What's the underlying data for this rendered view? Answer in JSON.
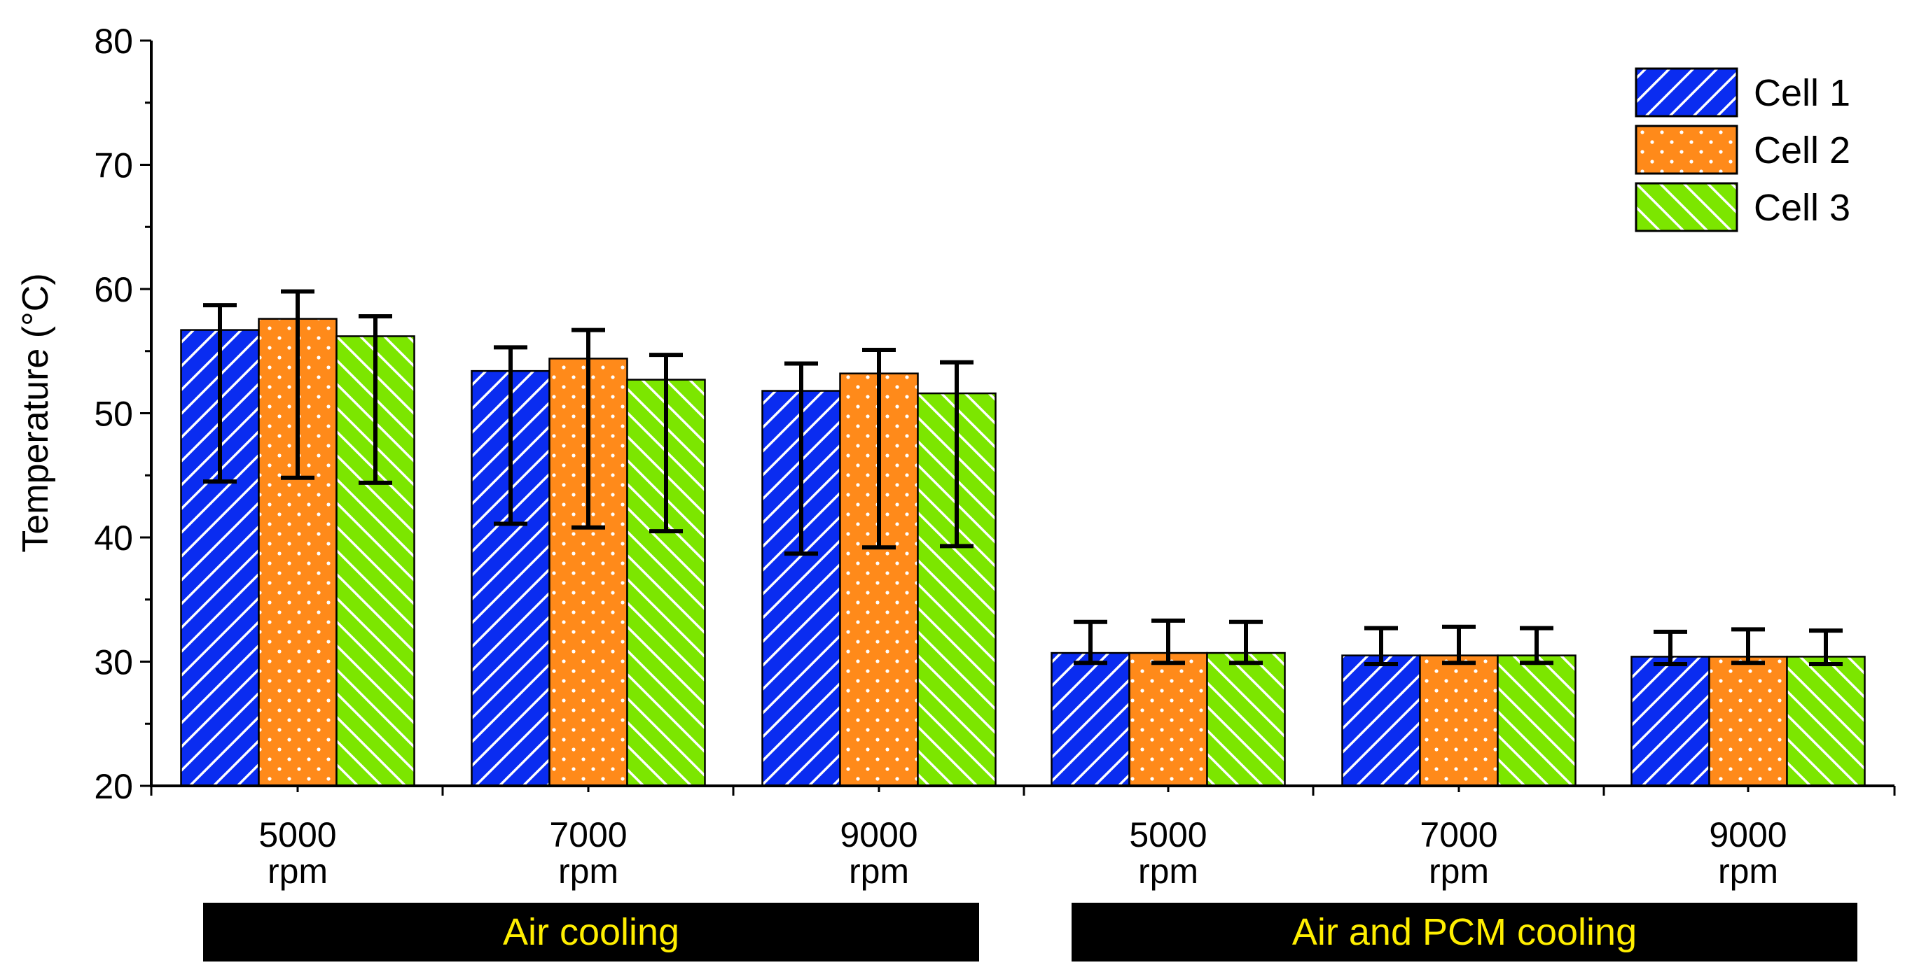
{
  "chart_data": {
    "type": "bar",
    "title": "",
    "xlabel": "",
    "ylabel": "Temperature (°C)",
    "ylim": [
      20,
      80
    ],
    "yticks": [
      20,
      30,
      40,
      50,
      60,
      70,
      80
    ],
    "grid": false,
    "legend_position": "top-right",
    "categories": [
      {
        "value": "5000",
        "unit": "rpm"
      },
      {
        "value": "7000",
        "unit": "rpm"
      },
      {
        "value": "9000",
        "unit": "rpm"
      },
      {
        "value": "5000",
        "unit": "rpm"
      },
      {
        "value": "7000",
        "unit": "rpm"
      },
      {
        "value": "9000",
        "unit": "rpm"
      }
    ],
    "groups": [
      {
        "label": "Air cooling",
        "categories": [
          0,
          1,
          2
        ]
      },
      {
        "label": "Air and PCM cooling",
        "categories": [
          3,
          4,
          5
        ]
      }
    ],
    "series": [
      {
        "name": "Cell 1",
        "color": "#0a2cf0",
        "pattern": "hatch-forward",
        "values": [
          56.7,
          53.4,
          51.8,
          30.7,
          30.5,
          30.4
        ],
        "err_low": [
          44.5,
          41.1,
          38.7,
          29.9,
          29.8,
          29.8
        ],
        "err_high": [
          58.7,
          55.3,
          54.0,
          33.2,
          32.7,
          32.4
        ]
      },
      {
        "name": "Cell 2",
        "color": "#ff8a1a",
        "pattern": "dots",
        "values": [
          57.6,
          54.4,
          53.2,
          30.7,
          30.5,
          30.4
        ],
        "err_low": [
          44.8,
          40.8,
          39.2,
          29.9,
          29.9,
          29.9
        ],
        "err_high": [
          59.8,
          56.7,
          55.1,
          33.3,
          32.8,
          32.6
        ]
      },
      {
        "name": "Cell 3",
        "color": "#7ce600",
        "pattern": "hatch-back",
        "values": [
          56.2,
          52.7,
          51.6,
          30.7,
          30.5,
          30.4
        ],
        "err_low": [
          44.4,
          40.5,
          39.3,
          29.9,
          29.9,
          29.8
        ],
        "err_high": [
          57.8,
          54.7,
          54.1,
          33.2,
          32.7,
          32.5
        ]
      }
    ]
  }
}
